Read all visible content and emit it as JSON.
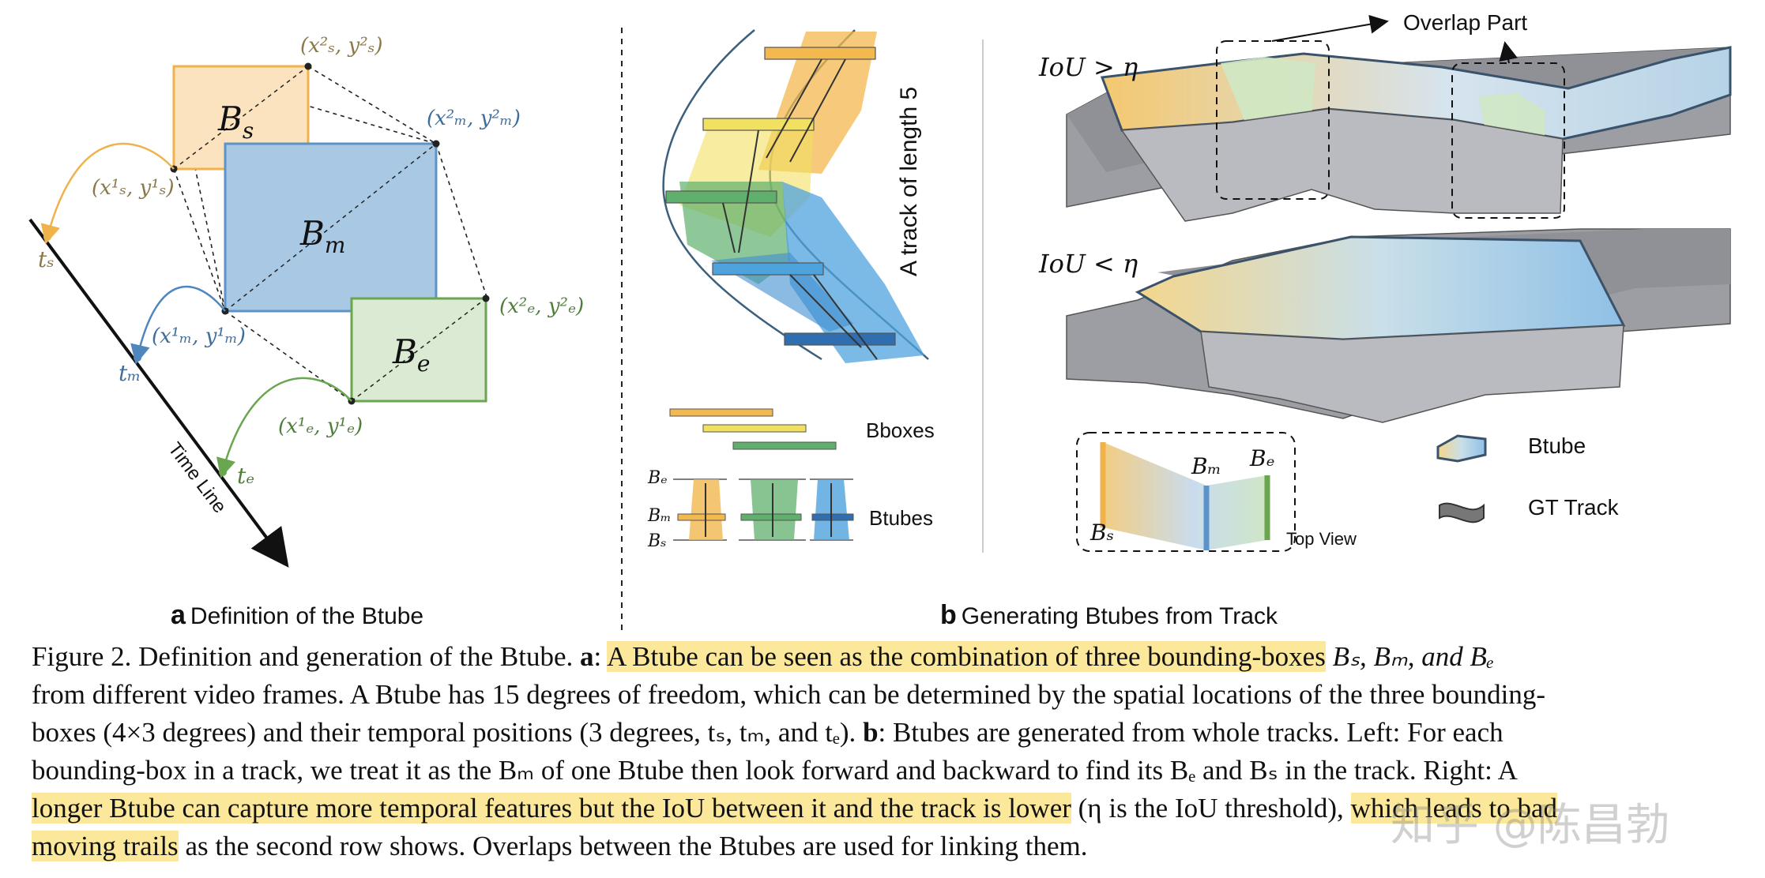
{
  "panel_a": {
    "labels": {
      "bs": "B",
      "bs_sub": "s",
      "bm": "B",
      "bm_sub": "m",
      "be": "B",
      "be_sub": "e",
      "p_s2": "(x²ₛ, y²ₛ)",
      "p_s1": "(x¹ₛ, y¹ₛ)",
      "p_m2": "(x²ₘ, y²ₘ)",
      "p_m1": "(x¹ₘ, y¹ₘ)",
      "p_e2": "(x²ₑ, y²ₑ)",
      "p_e1": "(x¹ₑ, y¹ₑ)",
      "ts": "tₛ",
      "tm": "tₘ",
      "te": "tₑ",
      "timeline": "Time Line"
    },
    "caption_bold": "a",
    "caption": "Definition of the Btube"
  },
  "panel_b_left": {
    "track_label": "A track of length 5",
    "bboxes": "Bboxes",
    "btubes": "Btubes",
    "be": "Bₑ",
    "bm": "Bₘ",
    "bs": "Bₛ"
  },
  "panel_b_right": {
    "overlap": "Overlap Part",
    "iou_gt": "IoU > η",
    "iou_lt": "IoU < η",
    "bs": "Bₛ",
    "bm": "Bₘ",
    "be": "Bₑ",
    "top_view": "Top View",
    "legend_btube": "Btube",
    "legend_gt": "GT Track"
  },
  "panel_b_caption_bold": "b",
  "panel_b_caption": "Generating Btubes from Track",
  "caption": {
    "l1_a": "Figure 2. Definition and generation of the Btube. ",
    "l1_b": "a",
    "l1_c": ": ",
    "l1_hl": "A Btube can be seen as the combination of three bounding-boxes",
    "l1_d": " Bₛ, Bₘ, and Bₑ",
    "l2": "from different video frames. A Btube has 15 degrees of freedom, which can be determined by the spatial locations of the three bounding-",
    "l3_a": "boxes (4×3 degrees) and their temporal positions (3 degrees, tₛ, tₘ, and tₑ). ",
    "l3_b": "b",
    "l3_c": ": Btubes are generated from whole tracks. Left: For each",
    "l4": "bounding-box in a track, we treat it as the Bₘ of one Btube then look forward and backward to find its Bₑ and Bₛ in the track. Right: A",
    "l5_hl": "longer Btube can capture more temporal features but the IoU between it and the track is lower",
    "l5_b": " (η is the IoU threshold), ",
    "l5_hl2": "which leads to bad",
    "l6_hl": "moving trails",
    "l6_b": " as the second row shows. Overlaps between the Btubes are used for linking them."
  },
  "watermark": "知乎 @陈昌勃",
  "colors": {
    "orange": "#f0b24a",
    "orange_fill": "#fbe3bf",
    "blue": "#5c93c8",
    "blue_fill": "#a9c8e4",
    "green": "#6aa64f",
    "green_fill": "#dbead2",
    "highlight": "#fbe89a"
  }
}
